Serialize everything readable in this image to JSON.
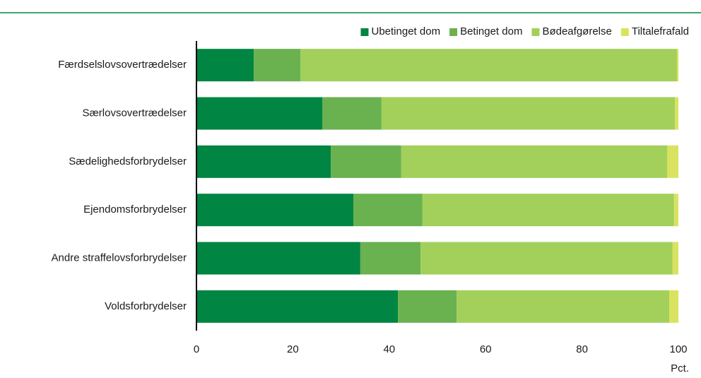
{
  "chart_data": {
    "type": "stacked_barh",
    "categories": [
      "Færdselslovsovertrædelser",
      "Særlovsovertrædelser",
      "Sædelighedsforbrydelser",
      "Ejendomsforbrydelser",
      "Andre straffelovsforbrydelser",
      "Voldsforbrydelser"
    ],
    "series": [
      {
        "name": "Ubetinget dom",
        "color": "#008542",
        "values": [
          11.9,
          26.1,
          27.9,
          32.6,
          34.0,
          41.8
        ]
      },
      {
        "name": "Betinget dom",
        "color": "#6ab150",
        "values": [
          9.7,
          12.3,
          14.6,
          14.3,
          12.5,
          12.2
        ]
      },
      {
        "name": "Bødeafgørelse",
        "color": "#a2d05a",
        "values": [
          78.1,
          60.9,
          55.2,
          52.2,
          52.3,
          44.1
        ]
      },
      {
        "name": "Tiltalefrafald",
        "color": "#d9e35f",
        "values": [
          0.3,
          0.7,
          2.3,
          0.9,
          1.2,
          1.9
        ]
      }
    ],
    "xlim": [
      0,
      100
    ],
    "xticks": [
      0,
      20,
      40,
      60,
      80,
      100
    ],
    "xlabel": "Pct.",
    "legend": "top-right"
  }
}
